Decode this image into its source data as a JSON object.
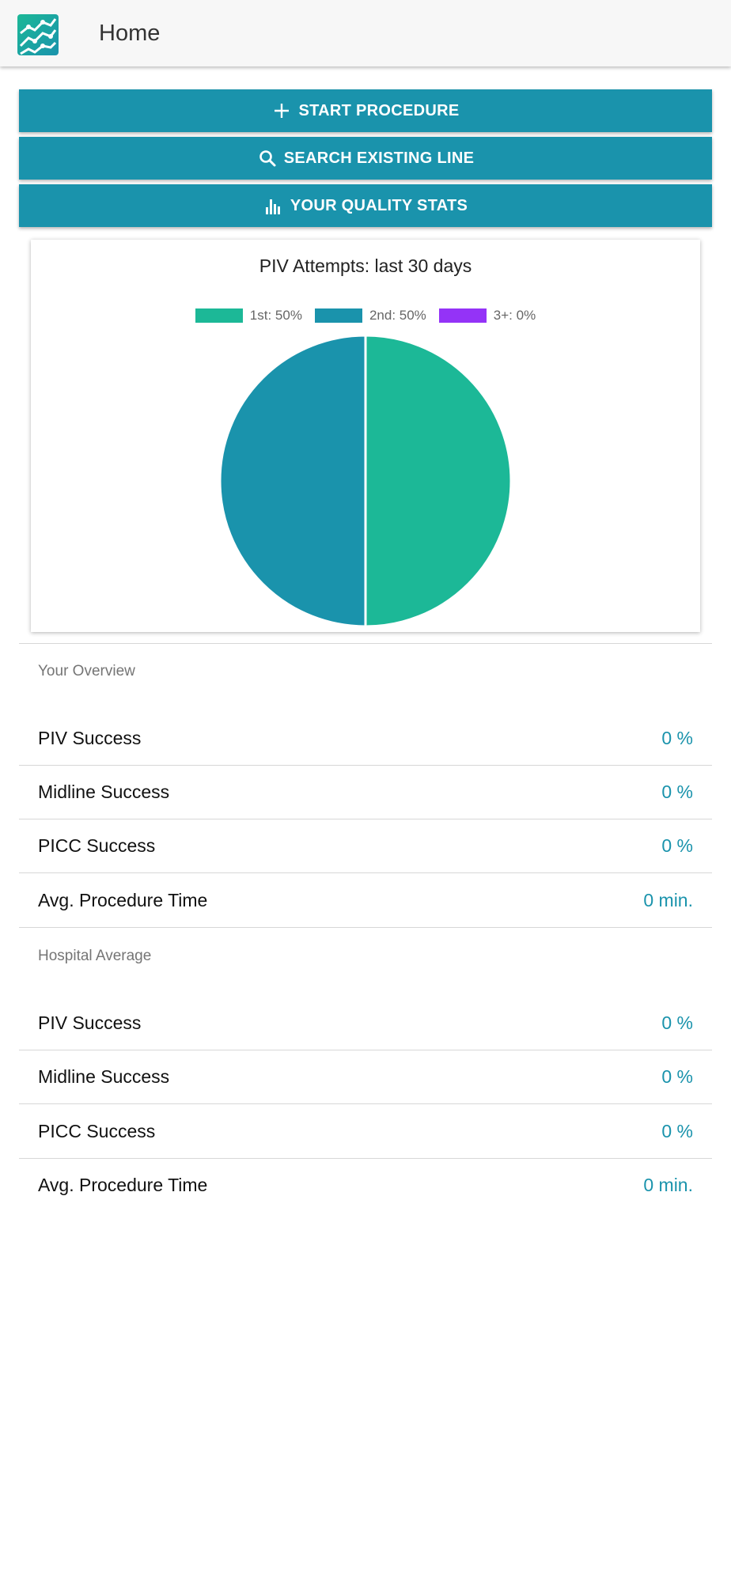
{
  "header": {
    "title": "Home",
    "logo_icon": "trend-chart-logo-icon"
  },
  "actions": [
    {
      "label": "START PROCEDURE",
      "icon": "plus-icon"
    },
    {
      "label": "SEARCH EXISTING LINE",
      "icon": "search-icon"
    },
    {
      "label": "YOUR QUALITY STATS",
      "icon": "bar-chart-icon"
    }
  ],
  "chart": {
    "title": "PIV Attempts: last 30 days",
    "legend": [
      "1st: 50%",
      "2nd: 50%",
      "3+: 0%"
    ]
  },
  "chart_data": {
    "type": "pie",
    "title": "PIV Attempts: last 30 days",
    "categories": [
      "1st",
      "2nd",
      "3+"
    ],
    "values": [
      50,
      50,
      0
    ],
    "colors": [
      "#1cb897",
      "#1a93ac",
      "#9433f7"
    ],
    "legend_position": "top"
  },
  "overview": {
    "title": "Your Overview",
    "rows": [
      {
        "label": "PIV Success",
        "value": "0 %"
      },
      {
        "label": "Midline Success",
        "value": "0 %"
      },
      {
        "label": "PICC Success",
        "value": "0 %"
      },
      {
        "label": "Avg. Procedure Time",
        "value": "0 min."
      }
    ]
  },
  "hospital": {
    "title": "Hospital Average",
    "rows": [
      {
        "label": "PIV Success",
        "value": "0 %"
      },
      {
        "label": "Midline Success",
        "value": "0 %"
      },
      {
        "label": "PICC Success",
        "value": "0 %"
      },
      {
        "label": "Avg. Procedure Time",
        "value": "0 min."
      }
    ]
  },
  "colors": {
    "accent": "#1a93ac",
    "appbar_bg": "#f7f7f7"
  }
}
